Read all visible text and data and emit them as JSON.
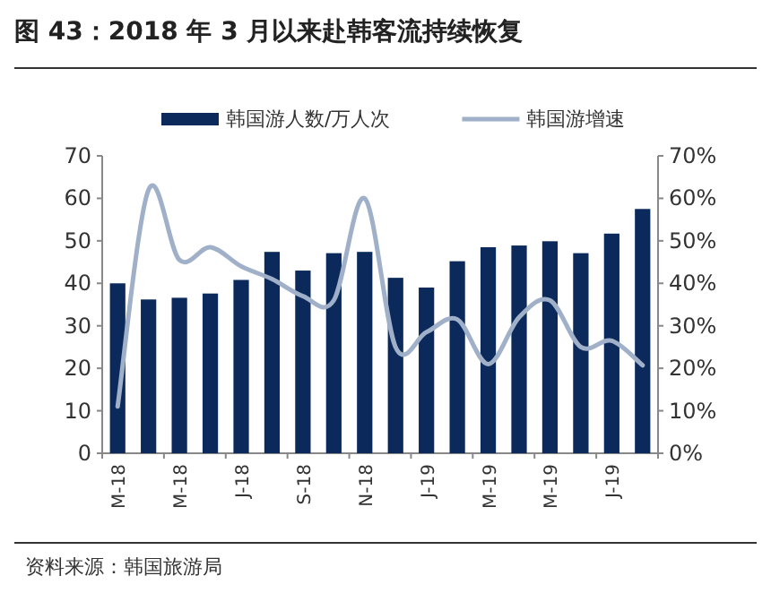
{
  "chart_data": {
    "type": "bar",
    "title": "图 43：2018 年 3 月以来赴韩客流持续恢复",
    "categories": [
      "M-18",
      null,
      "M-18",
      null,
      "J-18",
      null,
      "S-18",
      null,
      "N-18",
      null,
      "J-19",
      null,
      "M-19",
      null,
      "M-19",
      null,
      "J-19",
      null
    ],
    "series": [
      {
        "name": "韩国游人数/万人次",
        "color": "#0b2a5b",
        "values": [
          40,
          36.2,
          36.6,
          37.6,
          40.8,
          47.4,
          43,
          47.1,
          47.4,
          41.3,
          39,
          45.2,
          48.5,
          48.9,
          49.9,
          47.1,
          51.7,
          57.5
        ]
      },
      {
        "name": "韩国游增速",
        "type": "line",
        "axis": "y2",
        "color": "#9fb0c8",
        "values": [
          11,
          62,
          45.5,
          48.5,
          44,
          41,
          37,
          36,
          60,
          25,
          28.5,
          31.5,
          21,
          32,
          36,
          25,
          26.5,
          20.7
        ]
      }
    ],
    "ylim": [
      0,
      70
    ],
    "yticks": [
      0,
      10,
      20,
      30,
      40,
      50,
      60,
      70
    ],
    "y2lim": [
      0,
      70
    ],
    "y2ticks": [
      {
        "value": 0,
        "label": "0%"
      },
      {
        "value": 10,
        "label": "10%"
      },
      {
        "value": 20,
        "label": "20%"
      },
      {
        "value": 30,
        "label": "30%"
      },
      {
        "value": 40,
        "label": "40%"
      },
      {
        "value": 50,
        "label": "50%"
      },
      {
        "value": 60,
        "label": "60%"
      },
      {
        "value": 70,
        "label": "70%"
      }
    ],
    "legend": "top",
    "grid": false,
    "annotations": [
      "资料来源：韩国旅游局"
    ]
  }
}
